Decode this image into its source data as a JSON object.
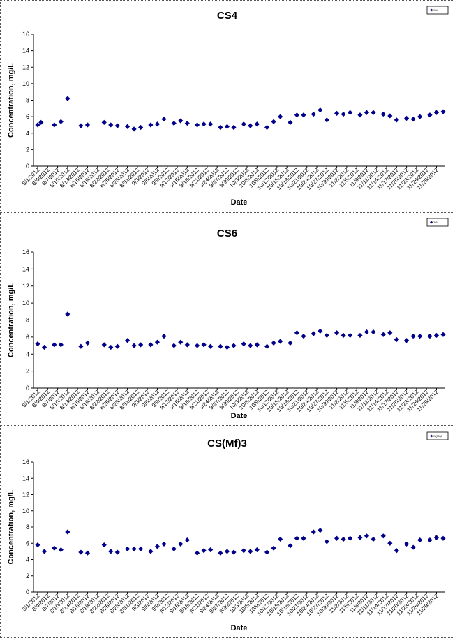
{
  "chart_data": [
    {
      "type": "scatter",
      "title": "CS4",
      "xlabel": "Date",
      "ylabel": "Concentration, mg/L",
      "ylim": [
        0,
        16
      ],
      "yticks": [
        0,
        2,
        4,
        6,
        8,
        10,
        12,
        14,
        16
      ],
      "grid": false,
      "legend": "top-right",
      "color": "#00008B",
      "series": [
        {
          "name": "CS4",
          "x": [
            "8/1/2012",
            "8/2/2012",
            "8/6/2012",
            "8/8/2012",
            "8/10/2012",
            "8/14/2012",
            "8/16/2012",
            "8/21/2012",
            "8/23/2012",
            "8/25/2012",
            "8/28/2012",
            "8/30/2012",
            "9/1/2012",
            "9/4/2012",
            "9/6/2012",
            "9/8/2012",
            "9/11/2012",
            "9/13/2012",
            "9/15/2012",
            "9/18/2012",
            "9/20/2012",
            "9/22/2012",
            "9/25/2012",
            "9/27/2012",
            "9/29/2012",
            "10/2/2012",
            "10/4/2012",
            "10/6/2012",
            "10/9/2012",
            "10/11/2012",
            "10/13/2012",
            "10/16/2012",
            "10/18/2012",
            "10/20/2012",
            "10/23/2012",
            "10/25/2012",
            "10/27/2012",
            "10/30/2012",
            "11/1/2012",
            "11/3/2012",
            "11/6/2012",
            "11/8/2012",
            "11/10/2012",
            "11/13/2012",
            "11/15/2012",
            "11/17/2012",
            "11/20/2012",
            "11/22/2012",
            "11/24/2012",
            "11/27/2012",
            "11/29/2012",
            "12/1/2012"
          ],
          "y": [
            5.0,
            5.3,
            5.0,
            5.4,
            8.2,
            4.9,
            5.0,
            5.3,
            5.0,
            4.9,
            4.8,
            4.5,
            4.7,
            5.0,
            5.1,
            5.7,
            5.2,
            5.5,
            5.2,
            5.0,
            5.1,
            5.1,
            4.7,
            4.8,
            4.7,
            5.1,
            4.9,
            5.1,
            4.7,
            5.4,
            6.0,
            5.3,
            6.2,
            6.2,
            6.3,
            6.8,
            5.6,
            6.4,
            6.3,
            6.5,
            6.2,
            6.5,
            6.5,
            6.3,
            6.1,
            5.6,
            5.8,
            5.7,
            6.0,
            6.2,
            6.5,
            6.6
          ]
        }
      ],
      "x_tick_labels": [
        "8/1/2012",
        "8/4/2012",
        "8/7/2012",
        "8/10/2012",
        "8/13/2012",
        "8/16/2012",
        "8/19/2012",
        "8/22/2012",
        "8/25/2012",
        "8/28/2012",
        "8/31/2012",
        "9/3/2012",
        "9/6/2012",
        "9/9/2012",
        "9/12/2012",
        "9/15/2012",
        "9/18/2012",
        "9/21/2012",
        "9/24/2012",
        "9/27/2012",
        "9/30/2012",
        "10/3/2012",
        "10/6/2012",
        "10/9/2012",
        "10/12/2012",
        "10/15/2012",
        "10/18/2012",
        "10/21/2012",
        "10/24/2012",
        "10/27/2012",
        "10/30/2012",
        "11/2/2012",
        "11/5/2012",
        "11/8/2012",
        "11/11/2012",
        "11/14/2012",
        "11/17/2012",
        "11/20/2012",
        "11/23/2012",
        "11/26/2012",
        "11/29/2012"
      ],
      "legend_entries": [
        "CS4"
      ]
    },
    {
      "type": "scatter",
      "title": "CS6",
      "xlabel": "Date",
      "ylabel": "Concentration, mg/L",
      "ylim": [
        0,
        16
      ],
      "yticks": [
        0,
        2,
        4,
        6,
        8,
        10,
        12,
        14,
        16
      ],
      "grid": false,
      "legend": "top-right",
      "color": "#00008B",
      "series": [
        {
          "name": "CS6",
          "x": [
            "8/1/2012",
            "8/3/2012",
            "8/6/2012",
            "8/8/2012",
            "8/10/2012",
            "8/14/2012",
            "8/16/2012",
            "8/21/2012",
            "8/23/2012",
            "8/25/2012",
            "8/28/2012",
            "8/30/2012",
            "9/1/2012",
            "9/4/2012",
            "9/6/2012",
            "9/8/2012",
            "9/11/2012",
            "9/13/2012",
            "9/15/2012",
            "9/18/2012",
            "9/20/2012",
            "9/22/2012",
            "9/25/2012",
            "9/27/2012",
            "9/29/2012",
            "10/2/2012",
            "10/4/2012",
            "10/6/2012",
            "10/9/2012",
            "10/11/2012",
            "10/13/2012",
            "10/16/2012",
            "10/18/2012",
            "10/20/2012",
            "10/23/2012",
            "10/25/2012",
            "10/27/2012",
            "10/30/2012",
            "11/1/2012",
            "11/3/2012",
            "11/6/2012",
            "11/8/2012",
            "11/10/2012",
            "11/13/2012",
            "11/15/2012",
            "11/17/2012",
            "11/20/2012",
            "11/22/2012",
            "11/24/2012",
            "11/27/2012",
            "11/29/2012",
            "12/1/2012"
          ],
          "y": [
            5.2,
            4.8,
            5.1,
            5.1,
            8.7,
            4.9,
            5.3,
            5.1,
            4.8,
            4.9,
            5.6,
            5.0,
            5.1,
            5.1,
            5.4,
            6.1,
            5.0,
            5.4,
            5.1,
            5.0,
            5.1,
            4.9,
            4.9,
            4.8,
            5.0,
            5.2,
            5.0,
            5.1,
            4.9,
            5.3,
            5.5,
            5.3,
            6.5,
            6.1,
            6.4,
            6.7,
            6.2,
            6.5,
            6.2,
            6.2,
            6.2,
            6.6,
            6.6,
            6.3,
            6.5,
            5.7,
            5.6,
            6.1,
            6.1,
            6.1,
            6.2,
            6.3
          ]
        }
      ],
      "x_tick_labels": [
        "8/1/2012",
        "8/4/2012",
        "8/7/2012",
        "8/10/2012",
        "8/13/2012",
        "8/16/2012",
        "8/19/2012",
        "8/22/2012",
        "8/25/2012",
        "8/28/2012",
        "8/31/2012",
        "9/3/2012",
        "9/6/2012",
        "9/9/2012",
        "9/12/2012",
        "9/15/2012",
        "9/18/2012",
        "9/21/2012",
        "9/24/2012",
        "9/27/2012",
        "9/30/2012",
        "10/3/2012",
        "10/6/2012",
        "10/9/2012",
        "10/12/2012",
        "10/15/2012",
        "10/18/2012",
        "10/21/2012",
        "10/24/2012",
        "10/27/2012",
        "10/30/2012",
        "11/2/2012",
        "11/5/2012",
        "11/8/2012",
        "11/11/2012",
        "11/14/2012",
        "11/17/2012",
        "11/20/2012",
        "11/23/2012",
        "11/26/2012",
        "11/29/2012"
      ],
      "legend_entries": [
        "CS6"
      ]
    },
    {
      "type": "scatter",
      "title": "CS(Mf)3",
      "xlabel": "Date",
      "ylabel": "Concentration, mg/L",
      "ylim": [
        0,
        16
      ],
      "yticks": [
        0,
        2,
        4,
        6,
        8,
        10,
        12,
        14,
        16
      ],
      "grid": false,
      "legend": "top-right",
      "color": "#00008B",
      "series": [
        {
          "name": "CS(Mf)3",
          "x": [
            "8/1/2012",
            "8/3/2012",
            "8/6/2012",
            "8/8/2012",
            "8/10/2012",
            "8/14/2012",
            "8/16/2012",
            "8/21/2012",
            "8/23/2012",
            "8/25/2012",
            "8/28/2012",
            "8/30/2012",
            "9/1/2012",
            "9/4/2012",
            "9/6/2012",
            "9/8/2012",
            "9/11/2012",
            "9/13/2012",
            "9/15/2012",
            "9/18/2012",
            "9/20/2012",
            "9/22/2012",
            "9/25/2012",
            "9/27/2012",
            "9/29/2012",
            "10/2/2012",
            "10/4/2012",
            "10/6/2012",
            "10/9/2012",
            "10/11/2012",
            "10/13/2012",
            "10/16/2012",
            "10/18/2012",
            "10/20/2012",
            "10/23/2012",
            "10/25/2012",
            "10/27/2012",
            "10/30/2012",
            "11/1/2012",
            "11/3/2012",
            "11/6/2012",
            "11/8/2012",
            "11/10/2012",
            "11/13/2012",
            "11/15/2012",
            "11/17/2012",
            "11/20/2012",
            "11/22/2012",
            "11/24/2012",
            "11/27/2012",
            "11/29/2012",
            "12/1/2012"
          ],
          "y": [
            5.8,
            5.0,
            5.4,
            5.2,
            7.4,
            4.9,
            4.8,
            5.8,
            5.0,
            4.9,
            5.3,
            5.3,
            5.3,
            5.0,
            5.6,
            5.9,
            5.3,
            5.9,
            6.4,
            4.8,
            5.1,
            5.2,
            4.8,
            5.0,
            4.9,
            5.1,
            5.0,
            5.2,
            4.9,
            5.4,
            6.5,
            5.7,
            6.6,
            6.6,
            7.4,
            7.6,
            6.2,
            6.6,
            6.5,
            6.6,
            6.7,
            6.9,
            6.5,
            6.9,
            6.0,
            5.1,
            5.9,
            5.5,
            6.4,
            6.4,
            6.7,
            6.6
          ]
        }
      ],
      "x_tick_labels": [
        "8/1/2012",
        "8/4/2012",
        "8/7/2012",
        "8/10/2012",
        "8/13/2012",
        "8/16/2012",
        "8/19/2012",
        "8/22/2012",
        "8/25/2012",
        "8/28/2012",
        "8/31/2012",
        "9/3/2012",
        "9/6/2012",
        "9/9/2012",
        "9/12/2012",
        "9/15/2012",
        "9/18/2012",
        "9/21/2012",
        "9/24/2012",
        "9/27/2012",
        "9/30/2012",
        "10/3/2012",
        "10/6/2012",
        "10/9/2012",
        "10/12/2012",
        "10/15/2012",
        "10/18/2012",
        "10/21/2012",
        "10/24/2012",
        "10/27/2012",
        "10/30/2012",
        "11/2/2012",
        "11/5/2012",
        "11/8/2012",
        "11/11/2012",
        "11/14/2012",
        "11/17/2012",
        "11/20/2012",
        "11/23/2012",
        "11/26/2012",
        "11/29/2012"
      ],
      "legend_entries": [
        "CS(Mf)3"
      ]
    }
  ]
}
